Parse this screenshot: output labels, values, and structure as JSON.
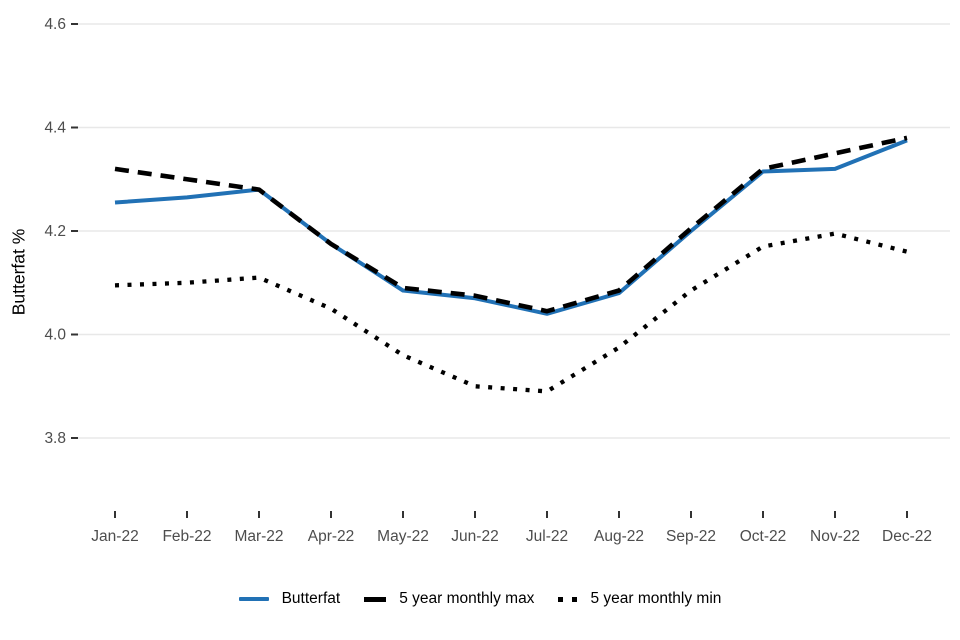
{
  "chart": {
    "grid_color": "#e8e8e8",
    "tick_color": "#333333",
    "tick_label_color": "#4d4d4d",
    "axis_title_color": "#000000",
    "background": "#ffffff"
  },
  "chart_data": {
    "type": "line",
    "title": "",
    "xlabel": "",
    "ylabel": "Butterfat %",
    "ylim": [
      3.8,
      4.6
    ],
    "yticks": [
      "4.6",
      "4.4",
      "4.2",
      "4.0",
      "3.8"
    ],
    "grid": true,
    "legend_position": "bottom",
    "categories": [
      "Jan-22",
      "Feb-22",
      "Mar-22",
      "Apr-22",
      "May-22",
      "Jun-22",
      "Jul-22",
      "Aug-22",
      "Sep-22",
      "Oct-22",
      "Nov-22",
      "Dec-22"
    ],
    "series": [
      {
        "name": "Butterfat",
        "color": "#2171b5",
        "linetype": "solid",
        "values": [
          4.255,
          4.265,
          4.28,
          4.175,
          4.085,
          4.07,
          4.04,
          4.08,
          4.2,
          4.315,
          4.32,
          4.375
        ]
      },
      {
        "name": "5 year monthly max",
        "color": "#000000",
        "linetype": "dashed",
        "values": [
          4.32,
          4.3,
          4.28,
          4.175,
          4.09,
          4.075,
          4.045,
          4.085,
          4.205,
          4.32,
          4.35,
          4.38
        ]
      },
      {
        "name": "5 year monthly min",
        "color": "#000000",
        "linetype": "dotted",
        "values": [
          4.095,
          4.1,
          4.11,
          4.05,
          3.96,
          3.9,
          3.89,
          3.975,
          4.085,
          4.17,
          4.195,
          4.16
        ]
      }
    ]
  }
}
